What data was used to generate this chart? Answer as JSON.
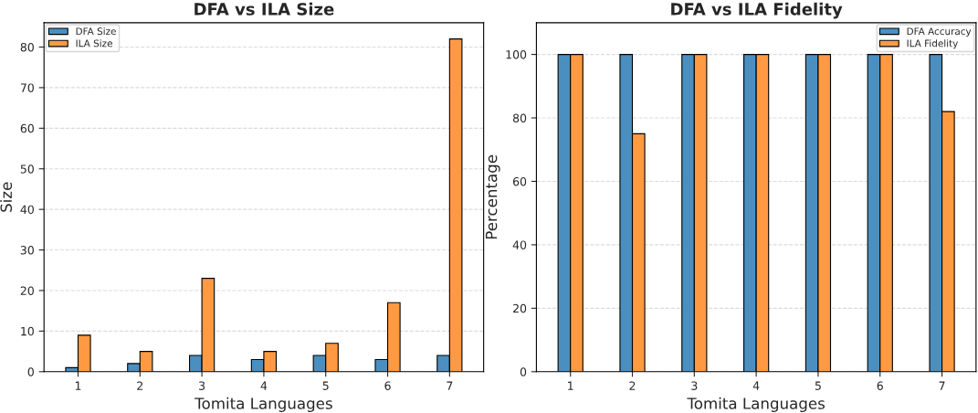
{
  "chart_data": [
    {
      "type": "bar",
      "title": "DFA vs ILA Size",
      "xlabel": "Tomita Languages",
      "ylabel": "Size",
      "categories": [
        "1",
        "2",
        "3",
        "4",
        "5",
        "6",
        "7"
      ],
      "series": [
        {
          "name": "DFA Size",
          "color": "#4b8fc1",
          "values": [
            1,
            2,
            4,
            3,
            4,
            3,
            4
          ]
        },
        {
          "name": "ILA Size",
          "color": "#ff9a42",
          "values": [
            9,
            5,
            23,
            5,
            7,
            17,
            82
          ]
        }
      ],
      "ylim": [
        0,
        86
      ],
      "yticks": [
        0,
        10,
        20,
        30,
        40,
        50,
        60,
        70,
        80
      ],
      "grid": "y",
      "legend": "top left"
    },
    {
      "type": "bar",
      "title": "DFA vs ILA Fidelity",
      "xlabel": "Tomita Languages",
      "ylabel": "Percentage",
      "categories": [
        "1",
        "2",
        "3",
        "4",
        "5",
        "6",
        "7"
      ],
      "series": [
        {
          "name": "DFA Accuracy",
          "color": "#4b8fc1",
          "values": [
            100,
            100,
            100,
            100,
            100,
            100,
            100
          ]
        },
        {
          "name": "ILA Fidelity",
          "color": "#ff9a42",
          "values": [
            100,
            75,
            100,
            100,
            100,
            100,
            82
          ]
        }
      ],
      "ylim": [
        0,
        110
      ],
      "yticks": [
        0,
        20,
        40,
        60,
        80,
        100
      ],
      "grid": "y",
      "legend": "top right"
    }
  ]
}
